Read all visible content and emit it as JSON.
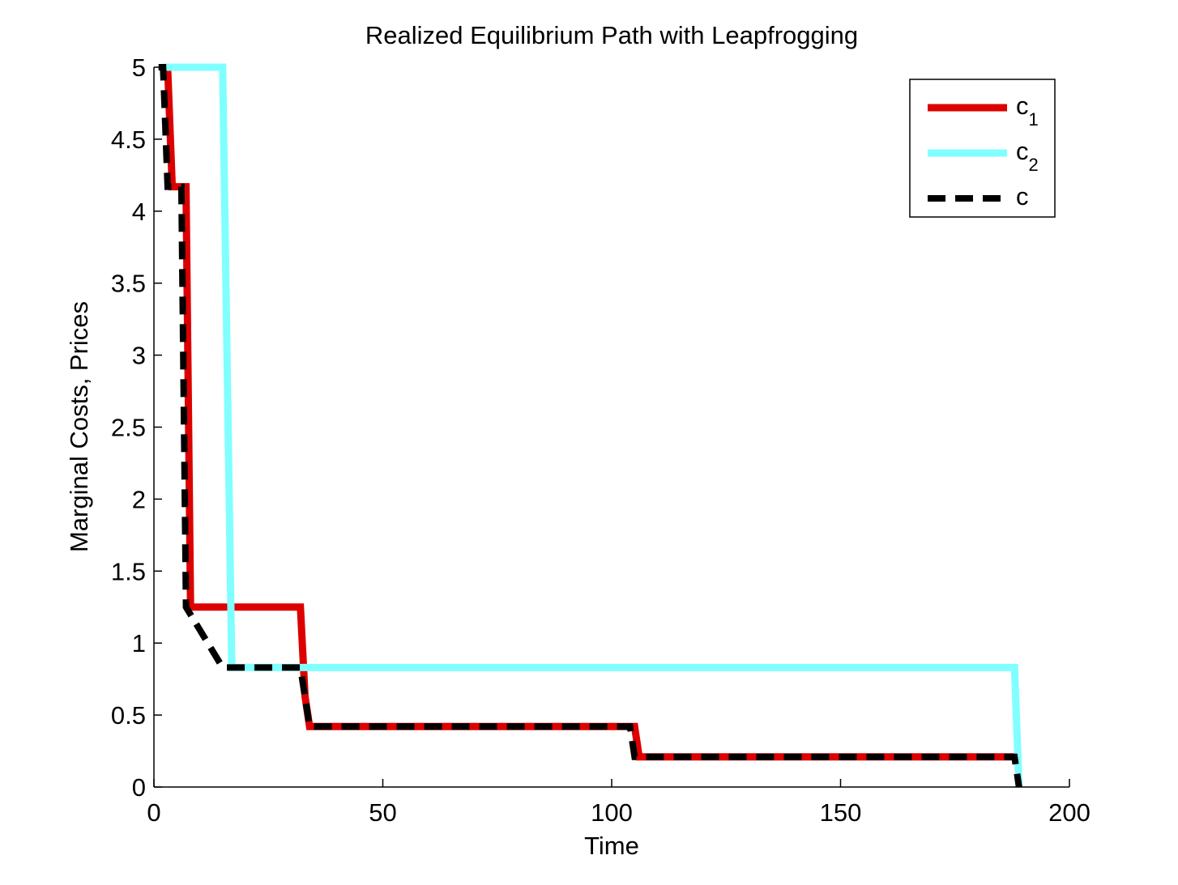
{
  "chart_data": {
    "type": "line",
    "title": "Realized Equilibrium Path with Leapfrogging",
    "xlabel": "Time",
    "ylabel": "Marginal Costs, Prices",
    "xlim": [
      0,
      200
    ],
    "ylim": [
      0,
      5
    ],
    "x_ticks": [
      0,
      50,
      100,
      150,
      200
    ],
    "x_tick_labels": [
      "0",
      "50",
      "100",
      "150",
      "200"
    ],
    "y_ticks": [
      0,
      0.5,
      1,
      1.5,
      2,
      2.5,
      3,
      3.5,
      4,
      4.5,
      5
    ],
    "y_tick_labels": [
      "0",
      "0.5",
      "1",
      "1.5",
      "2",
      "2.5",
      "3",
      "3.5",
      "4",
      "4.5",
      "5"
    ],
    "grid": false,
    "legend_position": "top-right",
    "series": [
      {
        "name": "c1",
        "legend_main": "c",
        "legend_sub": "1",
        "color": "#dd0000",
        "style": "solid",
        "x": [
          3,
          4,
          7,
          8,
          32,
          33,
          34,
          105,
          106,
          188
        ],
        "y": [
          5,
          4.17,
          4.17,
          1.25,
          1.25,
          0.63,
          0.42,
          0.42,
          0.21,
          0.21
        ]
      },
      {
        "name": "c2",
        "legend_main": "c",
        "legend_sub": "2",
        "color": "#80ffff",
        "style": "solid",
        "x": [
          2,
          15,
          17,
          188,
          189
        ],
        "y": [
          5,
          5,
          0.83,
          0.83,
          0
        ]
      },
      {
        "name": "c",
        "legend_main": "c",
        "legend_sub": "",
        "color": "#000000",
        "style": "dashed",
        "x": [
          1,
          2,
          3,
          6,
          7,
          15,
          32,
          34,
          104,
          105,
          188,
          189
        ],
        "y": [
          5,
          5,
          4.17,
          4.17,
          1.25,
          0.83,
          0.83,
          0.42,
          0.42,
          0.21,
          0.21,
          0
        ]
      }
    ]
  }
}
